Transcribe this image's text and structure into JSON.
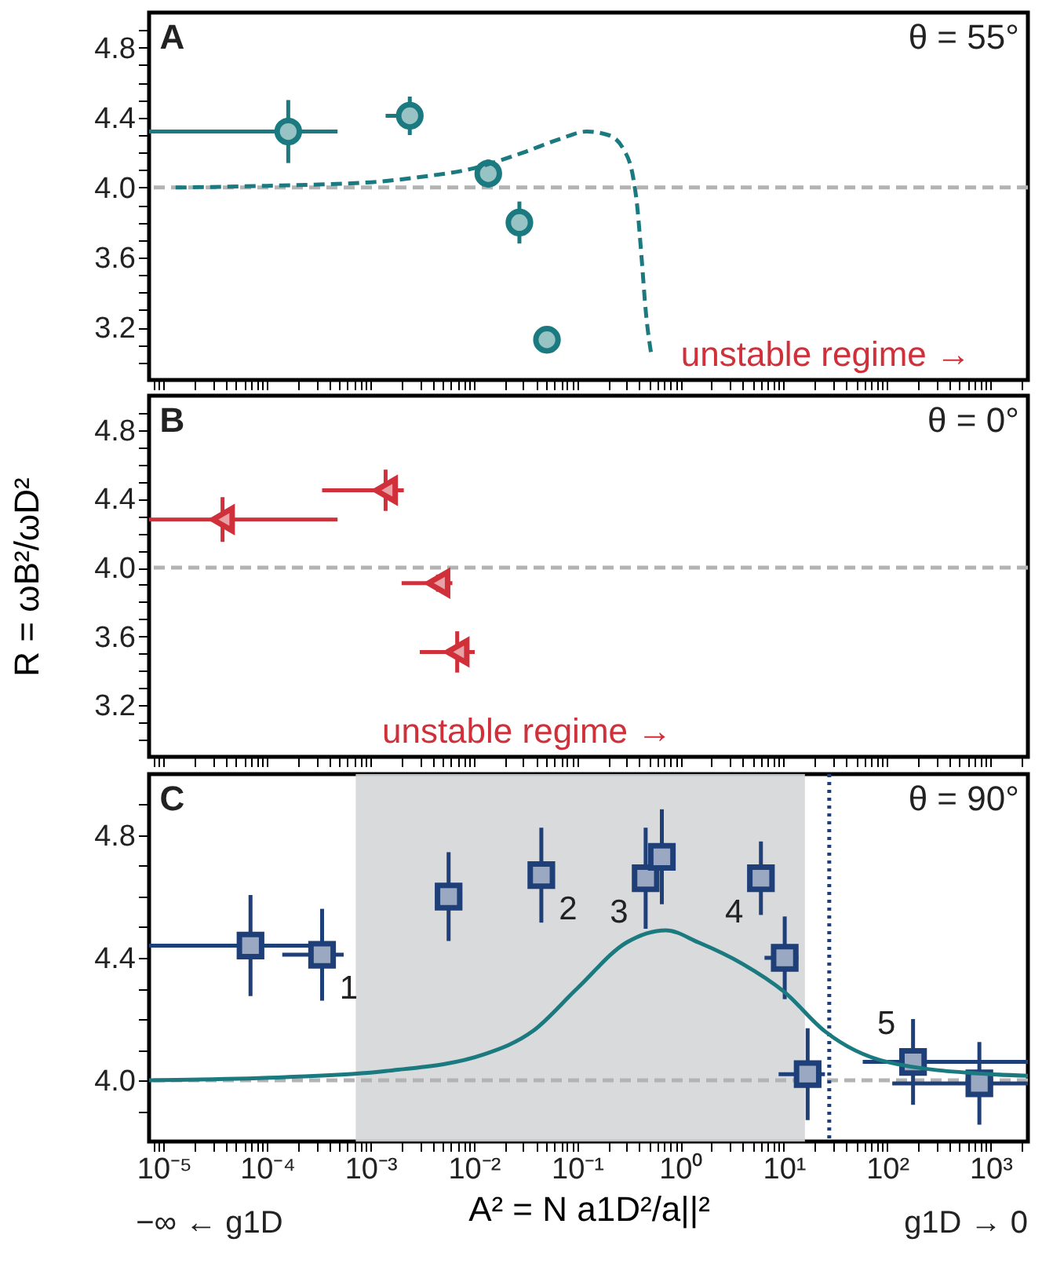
{
  "chart_data": [
    {
      "type": "scatter",
      "xlim": [
        7.2e-06,
        2300
      ],
      "ylim": [
        2.9,
        5.0
      ],
      "log": "x",
      "grid": false,
      "tick_labels": "y",
      "xticks": [
        {
          "value": 8e-06,
          "label": null
        },
        {
          "value": 9e-06,
          "label": null
        },
        {
          "value": 1e-05,
          "label": null
        },
        {
          "value": 2e-05,
          "label": null
        },
        {
          "value": 3e-05,
          "label": null
        },
        {
          "value": 4e-05,
          "label": null
        },
        {
          "value": 5e-05,
          "label": null
        },
        {
          "value": 6e-05,
          "label": null
        },
        {
          "value": 7e-05,
          "label": null
        },
        {
          "value": 8e-05,
          "label": null
        },
        {
          "value": 9e-05,
          "label": null
        },
        {
          "value": 0.0001,
          "label": null
        },
        {
          "value": 0.0002,
          "label": null
        },
        {
          "value": 0.0003,
          "label": null
        },
        {
          "value": 0.0004,
          "label": null
        },
        {
          "value": 0.0005,
          "label": null
        },
        {
          "value": 0.0006,
          "label": null
        },
        {
          "value": 0.0007,
          "label": null
        },
        {
          "value": 0.0008,
          "label": null
        },
        {
          "value": 0.0009,
          "label": null
        },
        {
          "value": 0.001,
          "label": null
        },
        {
          "value": 0.002,
          "label": null
        },
        {
          "value": 0.003,
          "label": null
        },
        {
          "value": 0.004,
          "label": null
        },
        {
          "value": 0.005,
          "label": null
        },
        {
          "value": 0.006,
          "label": null
        },
        {
          "value": 0.007,
          "label": null
        },
        {
          "value": 0.008,
          "label": null
        },
        {
          "value": 0.009,
          "label": null
        },
        {
          "value": 0.01,
          "label": null
        },
        {
          "value": 0.02,
          "label": null
        },
        {
          "value": 0.03,
          "label": null
        },
        {
          "value": 0.04,
          "label": null
        },
        {
          "value": 0.05,
          "label": null
        },
        {
          "value": 0.06,
          "label": null
        },
        {
          "value": 0.07,
          "label": null
        },
        {
          "value": 0.08,
          "label": null
        },
        {
          "value": 0.09,
          "label": null
        },
        {
          "value": 0.1,
          "label": null
        },
        {
          "value": 0.2,
          "label": null
        },
        {
          "value": 0.3,
          "label": null
        },
        {
          "value": 0.4,
          "label": null
        },
        {
          "value": 0.5,
          "label": null
        },
        {
          "value": 0.6,
          "label": null
        },
        {
          "value": 0.7,
          "label": null
        },
        {
          "value": 0.8,
          "label": null
        },
        {
          "value": 0.9,
          "label": null
        },
        {
          "value": 1,
          "label": null
        },
        {
          "value": 2,
          "label": null
        },
        {
          "value": 3,
          "label": null
        },
        {
          "value": 4,
          "label": null
        },
        {
          "value": 5,
          "label": null
        },
        {
          "value": 6,
          "label": null
        },
        {
          "value": 7,
          "label": null
        },
        {
          "value": 8,
          "label": null
        },
        {
          "value": 9,
          "label": null
        },
        {
          "value": 10,
          "label": null
        },
        {
          "value": 20,
          "label": null
        },
        {
          "value": 30,
          "label": null
        },
        {
          "value": 40,
          "label": null
        },
        {
          "value": 50,
          "label": null
        },
        {
          "value": 60,
          "label": null
        },
        {
          "value": 70,
          "label": null
        },
        {
          "value": 80,
          "label": null
        },
        {
          "value": 90,
          "label": null
        },
        {
          "value": 100,
          "label": null
        },
        {
          "value": 200,
          "label": null
        },
        {
          "value": 300,
          "label": null
        },
        {
          "value": 400,
          "label": null
        },
        {
          "value": 500,
          "label": null
        },
        {
          "value": 600,
          "label": null
        },
        {
          "value": 700,
          "label": null
        },
        {
          "value": 800,
          "label": null
        },
        {
          "value": 900,
          "label": null
        },
        {
          "value": 1000,
          "label": null
        },
        {
          "value": 2000,
          "label": null
        }
      ],
      "yticks": [
        {
          "value": 3.0,
          "label": null
        },
        {
          "value": 3.1,
          "label": null
        },
        {
          "value": 3.2,
          "label": "3.2"
        },
        {
          "value": 3.3,
          "label": null
        },
        {
          "value": 3.4,
          "label": null
        },
        {
          "value": 3.5,
          "label": null
        },
        {
          "value": 3.6,
          "label": "3.6"
        },
        {
          "value": 3.7,
          "label": null
        },
        {
          "value": 3.8,
          "label": null
        },
        {
          "value": 3.9,
          "label": null
        },
        {
          "value": 4.0,
          "label": "4.0"
        },
        {
          "value": 4.1,
          "label": null
        },
        {
          "value": 4.2,
          "label": null
        },
        {
          "value": 4.3,
          "label": null
        },
        {
          "value": 4.4,
          "label": "4.4"
        },
        {
          "value": 4.5,
          "label": null
        },
        {
          "value": 4.6,
          "label": null
        },
        {
          "value": 4.7,
          "label": null
        },
        {
          "value": 4.8,
          "label": "4.8"
        },
        {
          "value": 4.9,
          "label": null
        }
      ],
      "ref_lines": [
        {
          "axis": "y",
          "value": 4.0,
          "color": "#b3b3b3",
          "line_style": "dashed"
        }
      ],
      "annotations": [
        "A",
        "θ = 55°",
        "unstable regime →"
      ],
      "series": [
        {
          "color": "#1a7a80",
          "marker": "circle",
          "x": [
            0.00016,
            0.0024,
            0.0138,
            0.0276,
            0.051
          ],
          "values": [
            4.32,
            4.41,
            4.08,
            3.8,
            3.13
          ],
          "errors": [
            0.18,
            0.11,
            0.08,
            0.12,
            0.05
          ],
          "xerrors": [
            [
              7.2e-06,
              0.00048
            ],
            [
              0.0014,
              0.0032
            ],
            null,
            null,
            null
          ]
        },
        {
          "type": "line",
          "color": "#1a7a80",
          "line_style": "dashed",
          "x": [
            1.3e-05,
            0.0001,
            0.001,
            0.003,
            0.01,
            0.03,
            0.07,
            0.123,
            0.2,
            0.28,
            0.35,
            0.38,
            0.42,
            0.46,
            0.52
          ],
          "values": [
            4.0,
            4.01,
            4.03,
            4.06,
            4.11,
            4.2,
            4.28,
            4.32,
            4.3,
            4.22,
            4.05,
            3.9,
            3.6,
            3.3,
            3.05
          ]
        }
      ]
    },
    {
      "type": "scatter",
      "xlim": [
        7.2e-06,
        2300
      ],
      "ylim": [
        2.9,
        5.0
      ],
      "log": "x",
      "grid": false,
      "tick_labels": "y",
      "ylabel": "R = ωB²/ωD²",
      "xticks": [
        {
          "value": 8e-06,
          "label": null
        },
        {
          "value": 9e-06,
          "label": null
        },
        {
          "value": 1e-05,
          "label": null
        },
        {
          "value": 2e-05,
          "label": null
        },
        {
          "value": 3e-05,
          "label": null
        },
        {
          "value": 4e-05,
          "label": null
        },
        {
          "value": 5e-05,
          "label": null
        },
        {
          "value": 6e-05,
          "label": null
        },
        {
          "value": 7e-05,
          "label": null
        },
        {
          "value": 8e-05,
          "label": null
        },
        {
          "value": 9e-05,
          "label": null
        },
        {
          "value": 0.0001,
          "label": null
        },
        {
          "value": 0.0002,
          "label": null
        },
        {
          "value": 0.0003,
          "label": null
        },
        {
          "value": 0.0004,
          "label": null
        },
        {
          "value": 0.0005,
          "label": null
        },
        {
          "value": 0.0006,
          "label": null
        },
        {
          "value": 0.0007,
          "label": null
        },
        {
          "value": 0.0008,
          "label": null
        },
        {
          "value": 0.0009,
          "label": null
        },
        {
          "value": 0.001,
          "label": null
        },
        {
          "value": 0.002,
          "label": null
        },
        {
          "value": 0.003,
          "label": null
        },
        {
          "value": 0.004,
          "label": null
        },
        {
          "value": 0.005,
          "label": null
        },
        {
          "value": 0.006,
          "label": null
        },
        {
          "value": 0.007,
          "label": null
        },
        {
          "value": 0.008,
          "label": null
        },
        {
          "value": 0.009,
          "label": null
        },
        {
          "value": 0.01,
          "label": null
        },
        {
          "value": 0.02,
          "label": null
        },
        {
          "value": 0.03,
          "label": null
        },
        {
          "value": 0.04,
          "label": null
        },
        {
          "value": 0.05,
          "label": null
        },
        {
          "value": 0.06,
          "label": null
        },
        {
          "value": 0.07,
          "label": null
        },
        {
          "value": 0.08,
          "label": null
        },
        {
          "value": 0.09,
          "label": null
        },
        {
          "value": 0.1,
          "label": null
        },
        {
          "value": 0.2,
          "label": null
        },
        {
          "value": 0.3,
          "label": null
        },
        {
          "value": 0.4,
          "label": null
        },
        {
          "value": 0.5,
          "label": null
        },
        {
          "value": 0.6,
          "label": null
        },
        {
          "value": 0.7,
          "label": null
        },
        {
          "value": 0.8,
          "label": null
        },
        {
          "value": 0.9,
          "label": null
        },
        {
          "value": 1,
          "label": null
        },
        {
          "value": 2,
          "label": null
        },
        {
          "value": 3,
          "label": null
        },
        {
          "value": 4,
          "label": null
        },
        {
          "value": 5,
          "label": null
        },
        {
          "value": 6,
          "label": null
        },
        {
          "value": 7,
          "label": null
        },
        {
          "value": 8,
          "label": null
        },
        {
          "value": 9,
          "label": null
        },
        {
          "value": 10,
          "label": null
        },
        {
          "value": 20,
          "label": null
        },
        {
          "value": 30,
          "label": null
        },
        {
          "value": 40,
          "label": null
        },
        {
          "value": 50,
          "label": null
        },
        {
          "value": 60,
          "label": null
        },
        {
          "value": 70,
          "label": null
        },
        {
          "value": 80,
          "label": null
        },
        {
          "value": 90,
          "label": null
        },
        {
          "value": 100,
          "label": null
        },
        {
          "value": 200,
          "label": null
        },
        {
          "value": 300,
          "label": null
        },
        {
          "value": 400,
          "label": null
        },
        {
          "value": 500,
          "label": null
        },
        {
          "value": 600,
          "label": null
        },
        {
          "value": 700,
          "label": null
        },
        {
          "value": 800,
          "label": null
        },
        {
          "value": 900,
          "label": null
        },
        {
          "value": 1000,
          "label": null
        },
        {
          "value": 2000,
          "label": null
        }
      ],
      "yticks": [
        {
          "value": 3.0,
          "label": null
        },
        {
          "value": 3.1,
          "label": null
        },
        {
          "value": 3.2,
          "label": "3.2"
        },
        {
          "value": 3.3,
          "label": null
        },
        {
          "value": 3.4,
          "label": null
        },
        {
          "value": 3.5,
          "label": null
        },
        {
          "value": 3.6,
          "label": "3.6"
        },
        {
          "value": 3.7,
          "label": null
        },
        {
          "value": 3.8,
          "label": null
        },
        {
          "value": 3.9,
          "label": null
        },
        {
          "value": 4.0,
          "label": "4.0"
        },
        {
          "value": 4.1,
          "label": null
        },
        {
          "value": 4.2,
          "label": null
        },
        {
          "value": 4.3,
          "label": null
        },
        {
          "value": 4.4,
          "label": "4.4"
        },
        {
          "value": 4.5,
          "label": null
        },
        {
          "value": 4.6,
          "label": null
        },
        {
          "value": 4.7,
          "label": null
        },
        {
          "value": 4.8,
          "label": "4.8"
        },
        {
          "value": 4.9,
          "label": null
        }
      ],
      "ref_lines": [
        {
          "axis": "y",
          "value": 4.0,
          "color": "#b3b3b3",
          "line_style": "dashed"
        }
      ],
      "annotations": [
        "B",
        "θ = 0°",
        "unstable regime →"
      ],
      "series": [
        {
          "color": "#d0303a",
          "marker": "triangle",
          "x": [
            3.7e-05,
            0.0014,
            0.0045,
            0.0069
          ],
          "values": [
            4.28,
            4.45,
            3.91,
            3.51
          ],
          "errors": [
            0.13,
            0.12,
            0.05,
            0.12
          ],
          "xerrors": [
            [
              7.2e-06,
              0.00048
            ],
            [
              0.00034,
              0.0021
            ],
            [
              0.002,
              0.0062
            ],
            [
              0.003,
              0.0102
            ]
          ]
        }
      ]
    },
    {
      "type": "scatter",
      "xlim": [
        7.2e-06,
        2300
      ],
      "ylim": [
        3.8,
        5.0
      ],
      "log": "x",
      "grid": false,
      "xlabel": "A² = N a1D²/a||²",
      "xticks": [
        {
          "value": 8e-06,
          "label": null
        },
        {
          "value": 9e-06,
          "label": null
        },
        {
          "value": 1e-05,
          "label": "10⁻⁵"
        },
        {
          "value": 2e-05,
          "label": null
        },
        {
          "value": 3e-05,
          "label": null
        },
        {
          "value": 4e-05,
          "label": null
        },
        {
          "value": 5e-05,
          "label": null
        },
        {
          "value": 6e-05,
          "label": null
        },
        {
          "value": 7e-05,
          "label": null
        },
        {
          "value": 8e-05,
          "label": null
        },
        {
          "value": 9e-05,
          "label": null
        },
        {
          "value": 0.0001,
          "label": "10⁻⁴"
        },
        {
          "value": 0.0002,
          "label": null
        },
        {
          "value": 0.0003,
          "label": null
        },
        {
          "value": 0.0004,
          "label": null
        },
        {
          "value": 0.0005,
          "label": null
        },
        {
          "value": 0.0006,
          "label": null
        },
        {
          "value": 0.0007,
          "label": null
        },
        {
          "value": 0.0008,
          "label": null
        },
        {
          "value": 0.0009,
          "label": null
        },
        {
          "value": 0.001,
          "label": "10⁻³"
        },
        {
          "value": 0.002,
          "label": null
        },
        {
          "value": 0.003,
          "label": null
        },
        {
          "value": 0.004,
          "label": null
        },
        {
          "value": 0.005,
          "label": null
        },
        {
          "value": 0.006,
          "label": null
        },
        {
          "value": 0.007,
          "label": null
        },
        {
          "value": 0.008,
          "label": null
        },
        {
          "value": 0.009,
          "label": null
        },
        {
          "value": 0.01,
          "label": "10⁻²"
        },
        {
          "value": 0.02,
          "label": null
        },
        {
          "value": 0.03,
          "label": null
        },
        {
          "value": 0.04,
          "label": null
        },
        {
          "value": 0.05,
          "label": null
        },
        {
          "value": 0.06,
          "label": null
        },
        {
          "value": 0.07,
          "label": null
        },
        {
          "value": 0.08,
          "label": null
        },
        {
          "value": 0.09,
          "label": null
        },
        {
          "value": 0.1,
          "label": "10⁻¹"
        },
        {
          "value": 0.2,
          "label": null
        },
        {
          "value": 0.3,
          "label": null
        },
        {
          "value": 0.4,
          "label": null
        },
        {
          "value": 0.5,
          "label": null
        },
        {
          "value": 0.6,
          "label": null
        },
        {
          "value": 0.7,
          "label": null
        },
        {
          "value": 0.8,
          "label": null
        },
        {
          "value": 0.9,
          "label": null
        },
        {
          "value": 1,
          "label": "10⁰"
        },
        {
          "value": 2,
          "label": null
        },
        {
          "value": 3,
          "label": null
        },
        {
          "value": 4,
          "label": null
        },
        {
          "value": 5,
          "label": null
        },
        {
          "value": 6,
          "label": null
        },
        {
          "value": 7,
          "label": null
        },
        {
          "value": 8,
          "label": null
        },
        {
          "value": 9,
          "label": null
        },
        {
          "value": 10,
          "label": "10¹"
        },
        {
          "value": 20,
          "label": null
        },
        {
          "value": 30,
          "label": null
        },
        {
          "value": 40,
          "label": null
        },
        {
          "value": 50,
          "label": null
        },
        {
          "value": 60,
          "label": null
        },
        {
          "value": 70,
          "label": null
        },
        {
          "value": 80,
          "label": null
        },
        {
          "value": 90,
          "label": null
        },
        {
          "value": 100,
          "label": "10²"
        },
        {
          "value": 200,
          "label": null
        },
        {
          "value": 300,
          "label": null
        },
        {
          "value": 400,
          "label": null
        },
        {
          "value": 500,
          "label": null
        },
        {
          "value": 600,
          "label": null
        },
        {
          "value": 700,
          "label": null
        },
        {
          "value": 800,
          "label": null
        },
        {
          "value": 900,
          "label": null
        },
        {
          "value": 1000,
          "label": "10³"
        },
        {
          "value": 2000,
          "label": null
        }
      ],
      "yticks": [
        {
          "value": 3.9,
          "label": null
        },
        {
          "value": 4.0,
          "label": "4.0"
        },
        {
          "value": 4.1,
          "label": null
        },
        {
          "value": 4.2,
          "label": null
        },
        {
          "value": 4.3,
          "label": null
        },
        {
          "value": 4.4,
          "label": "4.4"
        },
        {
          "value": 4.5,
          "label": null
        },
        {
          "value": 4.6,
          "label": null
        },
        {
          "value": 4.7,
          "label": null
        },
        {
          "value": 4.8,
          "label": "4.8"
        },
        {
          "value": 4.9,
          "label": null
        }
      ],
      "bands": [
        {
          "axis": "x",
          "from": 0.00072,
          "to": 16,
          "color": "#d4d6d8"
        }
      ],
      "ref_lines": [
        {
          "axis": "y",
          "value": 4.0,
          "color": "#b3b3b3",
          "line_style": "dashed"
        },
        {
          "axis": "x",
          "value": 27.5,
          "color": "#1f3f78",
          "line_style": "dotted"
        }
      ],
      "annotations": [
        "C",
        "θ = 90°",
        "−∞ ← g1D",
        "g1D → 0",
        {
          "text": "1",
          "x": 0.00034,
          "y": 4.41
        },
        {
          "text": "2",
          "x": 0.045,
          "y": 4.67
        },
        {
          "text": "3",
          "x": 0.46,
          "y": 4.66
        },
        {
          "text": "4",
          "x": 6.0,
          "y": 4.66
        },
        {
          "text": "5",
          "x": 178,
          "y": 4.06
        }
      ],
      "series": [
        {
          "color": "#1f3f78",
          "marker": "square",
          "x": [
            6.9e-05,
            0.00034,
            0.0057,
            0.045,
            0.46,
            0.66,
            6.0,
            10.2,
            17,
            178,
            780
          ],
          "values": [
            4.44,
            4.41,
            4.6,
            4.67,
            4.66,
            4.73,
            4.66,
            4.4,
            4.02,
            4.06,
            3.99
          ],
          "errors": [
            0.165,
            0.15,
            0.145,
            0.155,
            0.165,
            0.155,
            0.12,
            0.135,
            0.15,
            0.14,
            0.135
          ],
          "xerrors": [
            [
              7.2e-06,
              0.00046
            ],
            [
              0.00014,
              0.00055
            ],
            null,
            null,
            null,
            null,
            null,
            [
              6.5,
              13.8
            ],
            [
              8.9,
              25
            ],
            [
              58,
              2300
            ],
            [
              112,
              2300
            ]
          ]
        },
        {
          "type": "line",
          "color": "#1a7a80",
          "line_style": "solid",
          "x": [
            7.2e-06,
            0.00015,
            0.0014,
            0.0126,
            0.037,
            0.1,
            0.3,
            0.72,
            1.5,
            4,
            10,
            25,
            100,
            1000,
            2300
          ],
          "values": [
            4.0,
            4.01,
            4.03,
            4.085,
            4.16,
            4.3,
            4.45,
            4.49,
            4.45,
            4.38,
            4.29,
            4.16,
            4.06,
            4.02,
            4.015
          ]
        }
      ]
    }
  ]
}
